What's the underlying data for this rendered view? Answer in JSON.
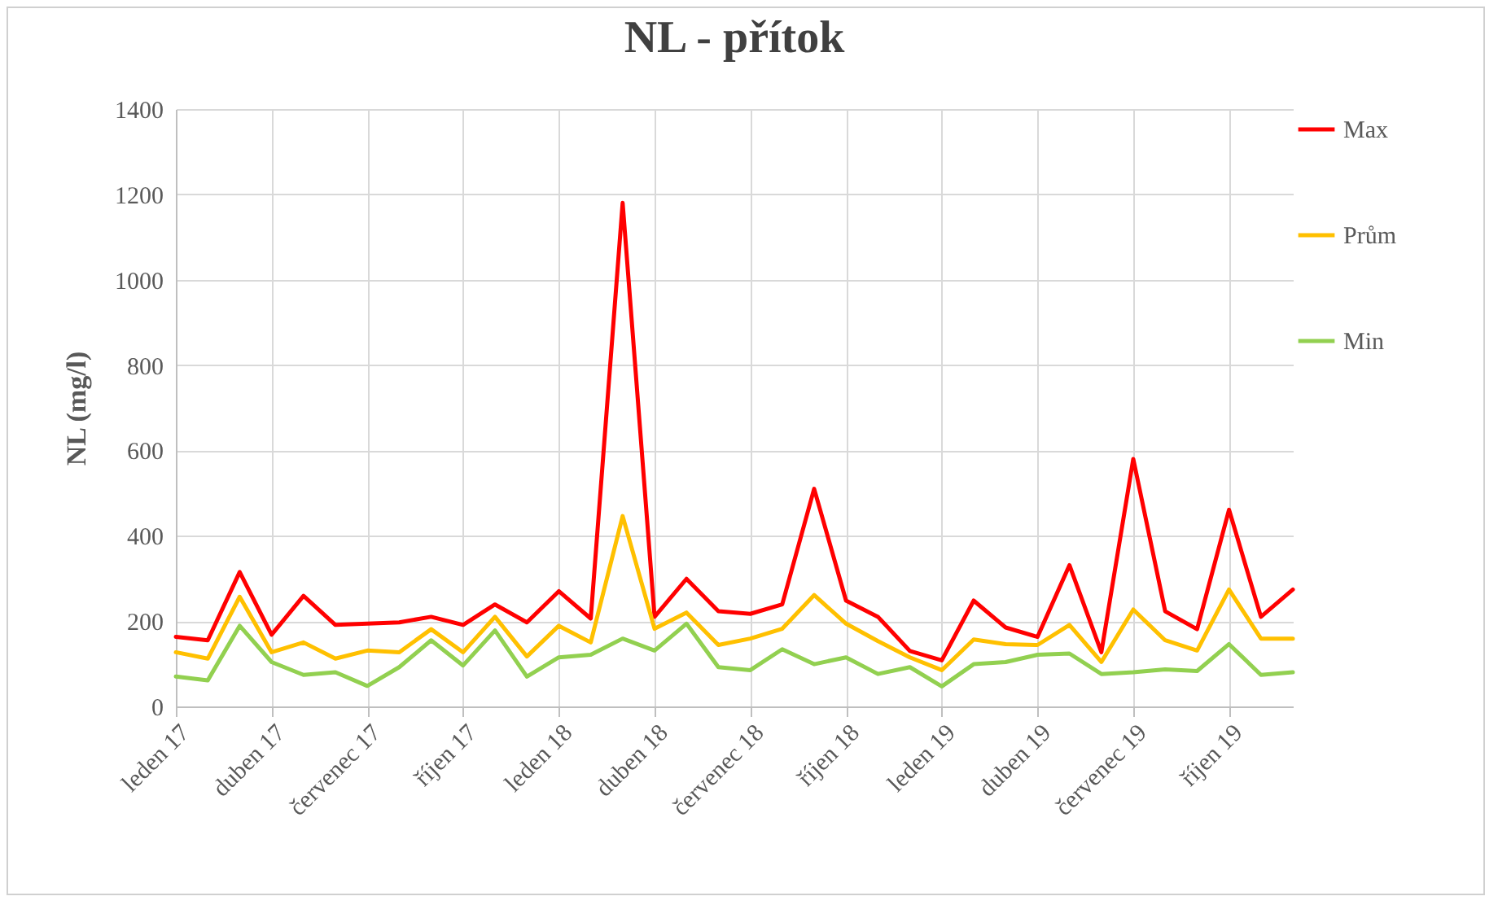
{
  "chart_data": {
    "type": "line",
    "title": "NL - přítok",
    "ylabel": "NL (mg/l)",
    "categories": [
      "leden 17",
      null,
      null,
      "duben 17",
      null,
      null,
      "červenec 17",
      null,
      null,
      "říjen 17",
      null,
      null,
      "leden 18",
      null,
      null,
      "duben 18",
      null,
      null,
      "červenec 18",
      null,
      null,
      "říjen 18",
      null,
      null,
      "leden 19",
      null,
      null,
      "duben 19",
      null,
      null,
      "červenec 19",
      null,
      null,
      "říjen 19",
      null,
      null
    ],
    "series": [
      {
        "name": "Max",
        "color": "#ff0000",
        "values": [
          163,
          155,
          315,
          168,
          259,
          191,
          194,
          197,
          210,
          191,
          239,
          197,
          270,
          206,
          1180,
          210,
          299,
          223,
          217,
          239,
          510,
          248,
          210,
          130,
          108,
          248,
          185,
          163,
          331,
          127,
          580,
          223,
          181,
          461,
          210,
          274
        ]
      },
      {
        "name": "Prům",
        "color": "#ffc000",
        "values": [
          127,
          112,
          257,
          127,
          150,
          112,
          131,
          127,
          181,
          127,
          210,
          117,
          189,
          150,
          446,
          182,
          220,
          144,
          159,
          182,
          261,
          194,
          153,
          115,
          85,
          157,
          146,
          144,
          191,
          104,
          227,
          155,
          131,
          274,
          159,
          159
        ]
      },
      {
        "name": "Min",
        "color": "#92d050",
        "values": [
          70,
          61,
          189,
          104,
          74,
          80,
          48,
          92,
          155,
          96,
          178,
          70,
          115,
          121,
          159,
          131,
          194,
          92,
          85,
          134,
          99,
          115,
          76,
          92,
          47,
          99,
          104,
          121,
          124,
          76,
          80,
          87,
          83,
          146,
          74,
          80
        ]
      }
    ],
    "ylim": [
      0,
      1400
    ],
    "yticks": [
      0,
      200,
      400,
      600,
      800,
      1000,
      1200,
      1400
    ],
    "grid": true,
    "legend": "right"
  }
}
